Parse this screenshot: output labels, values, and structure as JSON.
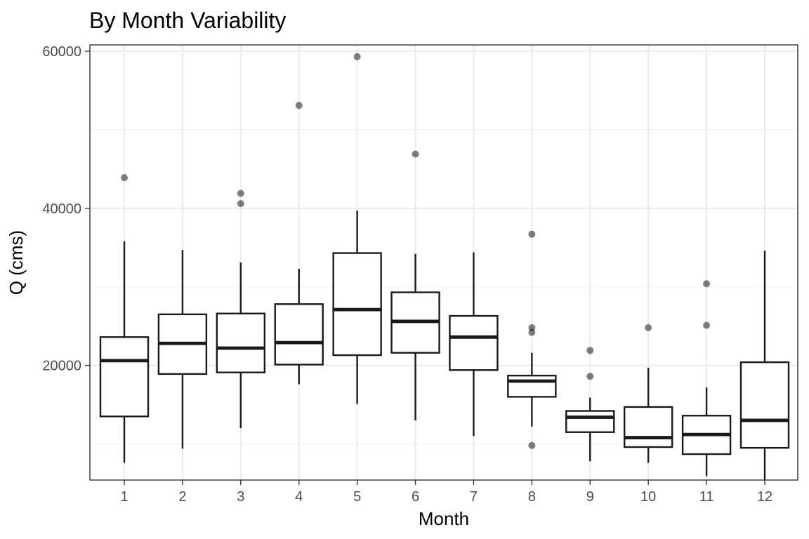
{
  "chart_data": {
    "type": "boxplot",
    "title": "By Month Variability",
    "xlabel": "Month",
    "ylabel": "Q (cms)",
    "categories": [
      "1",
      "2",
      "3",
      "4",
      "5",
      "6",
      "7",
      "8",
      "9",
      "10",
      "11",
      "12"
    ],
    "ylim": [
      5400,
      60800
    ],
    "y_ticks": [
      20000,
      40000,
      60000
    ],
    "y_tick_labels": [
      "20000",
      "40000",
      "60000"
    ],
    "y_minor_ticks": [
      10000,
      30000,
      50000
    ],
    "grid": true,
    "legend": "none",
    "boxes": [
      {
        "category": "1",
        "min": 7600,
        "q1": 13500,
        "median": 20600,
        "q3": 23600,
        "max": 35800,
        "outliers": [
          43900
        ]
      },
      {
        "category": "2",
        "min": 9400,
        "q1": 18900,
        "median": 22800,
        "q3": 26500,
        "max": 34700,
        "outliers": []
      },
      {
        "category": "3",
        "min": 12000,
        "q1": 19100,
        "median": 22200,
        "q3": 26600,
        "max": 33100,
        "outliers": [
          40600,
          41900
        ]
      },
      {
        "category": "4",
        "min": 17600,
        "q1": 20100,
        "median": 22900,
        "q3": 27800,
        "max": 32300,
        "outliers": [
          53100
        ]
      },
      {
        "category": "5",
        "min": 15100,
        "q1": 21300,
        "median": 27100,
        "q3": 34300,
        "max": 39700,
        "outliers": [
          59300
        ]
      },
      {
        "category": "6",
        "min": 13000,
        "q1": 21600,
        "median": 25600,
        "q3": 29300,
        "max": 34200,
        "outliers": [
          46900
        ]
      },
      {
        "category": "7",
        "min": 11000,
        "q1": 19400,
        "median": 23600,
        "q3": 26300,
        "max": 34400,
        "outliers": []
      },
      {
        "category": "8",
        "min": 12200,
        "q1": 16000,
        "median": 18000,
        "q3": 18700,
        "max": 21600,
        "outliers": [
          9800,
          24200,
          24800,
          36700
        ]
      },
      {
        "category": "9",
        "min": 7800,
        "q1": 11500,
        "median": 13400,
        "q3": 14200,
        "max": 15900,
        "outliers": [
          18600,
          21900
        ]
      },
      {
        "category": "10",
        "min": 7600,
        "q1": 9600,
        "median": 10800,
        "q3": 14700,
        "max": 19700,
        "outliers": [
          24800
        ]
      },
      {
        "category": "11",
        "min": 5900,
        "q1": 8700,
        "median": 11200,
        "q3": 13600,
        "max": 17200,
        "outliers": [
          25100,
          30400
        ]
      },
      {
        "category": "12",
        "min": 5400,
        "q1": 9500,
        "median": 13000,
        "q3": 20400,
        "max": 34600,
        "outliers": []
      }
    ]
  }
}
